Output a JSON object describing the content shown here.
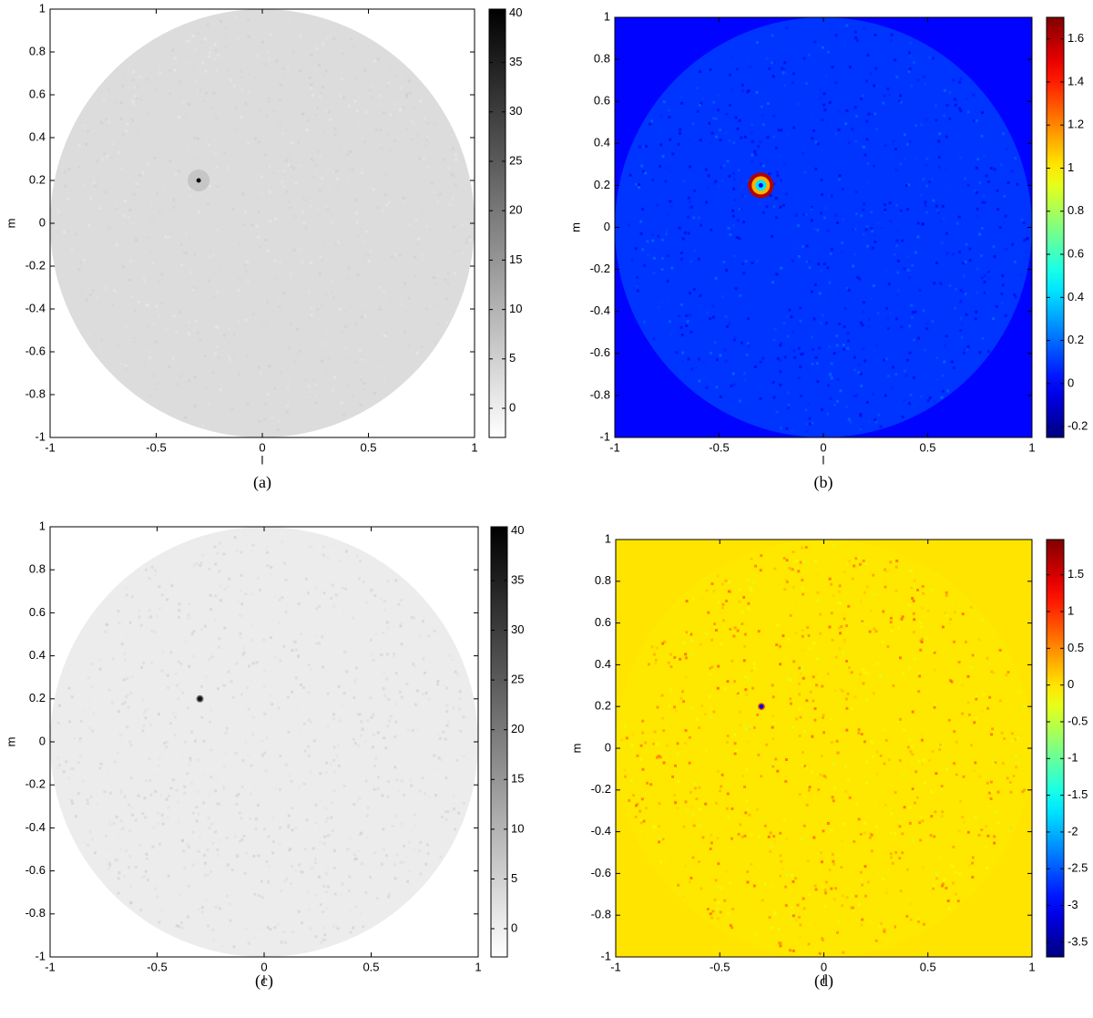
{
  "chart_data": [
    {
      "type": "heatmap",
      "caption": "(a)",
      "xlabel": "l",
      "ylabel": "m",
      "xlim": [
        -1,
        1
      ],
      "ylim": [
        -1,
        1
      ],
      "xticks": [
        -1,
        -0.5,
        0,
        0.5,
        1
      ],
      "yticks": [
        -1,
        -0.8,
        -0.6,
        -0.4,
        -0.2,
        0,
        0.2,
        0.4,
        0.6,
        0.8,
        1
      ],
      "colormap": "gray_r",
      "clim": [
        -2.95,
        40.4
      ],
      "cticks": [
        0,
        5,
        10,
        15,
        20,
        25,
        30,
        35,
        40
      ]
    },
    {
      "type": "heatmap",
      "caption": "(b)",
      "xlabel": "l",
      "ylabel": "m",
      "xlim": [
        -1,
        1
      ],
      "ylim": [
        -1,
        1
      ],
      "xticks": [
        -1,
        -0.5,
        0,
        0.5,
        1
      ],
      "yticks": [
        -1,
        -0.8,
        -0.6,
        -0.4,
        -0.2,
        0,
        0.2,
        0.4,
        0.6,
        0.8,
        1
      ],
      "colormap": "jet",
      "clim": [
        -0.25,
        1.7
      ],
      "cticks": [
        -0.2,
        0,
        0.2,
        0.4,
        0.6,
        0.8,
        1,
        1.2,
        1.4,
        1.6
      ]
    },
    {
      "type": "heatmap",
      "caption": "(c)",
      "xlabel": "l",
      "ylabel": "m",
      "xlim": [
        -1,
        1
      ],
      "ylim": [
        -1,
        1
      ],
      "xticks": [
        -1,
        -0.5,
        0,
        0.5,
        1
      ],
      "yticks": [
        -1,
        -0.8,
        -0.6,
        -0.4,
        -0.2,
        0,
        0.2,
        0.4,
        0.6,
        0.8,
        1
      ],
      "colormap": "gray_r",
      "clim": [
        -2.84,
        40.4
      ],
      "cticks": [
        0,
        5,
        10,
        15,
        20,
        25,
        30,
        35,
        40
      ]
    },
    {
      "type": "heatmap",
      "caption": "(d)",
      "xlabel": "l",
      "ylabel": "m",
      "xlim": [
        -1,
        1
      ],
      "ylim": [
        -1,
        1
      ],
      "xticks": [
        -1,
        -0.5,
        0,
        0.5,
        1
      ],
      "yticks": [
        -1,
        -0.8,
        -0.6,
        -0.4,
        -0.2,
        0,
        0.2,
        0.4,
        0.6,
        0.8,
        1
      ],
      "colormap": "jet",
      "clim": [
        -3.7,
        1.98
      ],
      "cticks": [
        -3.5,
        -3,
        -2.5,
        -2,
        -1.5,
        -1,
        -0.5,
        0,
        0.5,
        1,
        1.5
      ]
    }
  ]
}
